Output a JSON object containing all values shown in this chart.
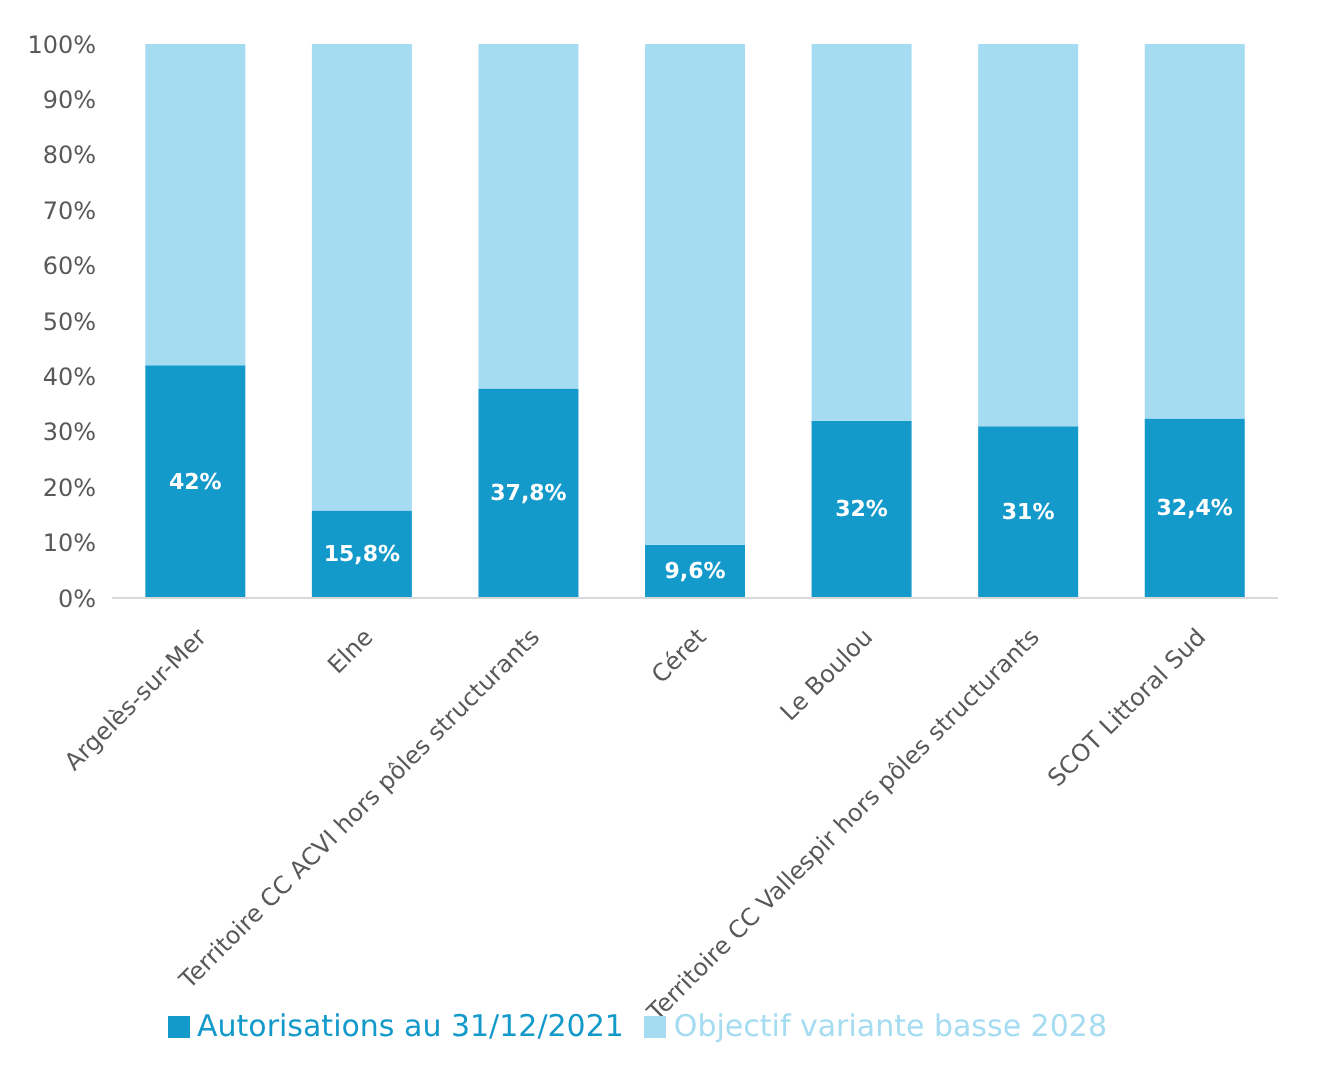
{
  "chart_data": {
    "type": "bar",
    "stacked": true,
    "categories": [
      "Argelès-sur-Mer",
      "Elne",
      "Territoire CC ACVI hors pôles structurants",
      "Céret",
      "Le Boulou",
      "Territoire CC Vallespir hors pôles structurants",
      "SCOT Littoral Sud"
    ],
    "series": [
      {
        "name": "Autorisations au 31/12/2021",
        "color": "#1499cb",
        "values": [
          42,
          15.8,
          37.8,
          9.6,
          32,
          31,
          32.4
        ],
        "value_labels": [
          "42%",
          "15,8%",
          "37,8%",
          "9,6%",
          "32%",
          "31%",
          "32,4%"
        ]
      },
      {
        "name": "Objectif variante basse 2028",
        "color": "#a5dcf2",
        "values": [
          58,
          84.2,
          62.2,
          90.4,
          68,
          69,
          67.6
        ]
      }
    ],
    "ylim": [
      0,
      100
    ],
    "yticks": [
      {
        "value": 0,
        "label": "0%"
      },
      {
        "value": 10,
        "label": "10%"
      },
      {
        "value": 20,
        "label": "20%"
      },
      {
        "value": 30,
        "label": "30%"
      },
      {
        "value": 40,
        "label": "40%"
      },
      {
        "value": 50,
        "label": "50%"
      },
      {
        "value": 60,
        "label": "60%"
      },
      {
        "value": 70,
        "label": "70%"
      },
      {
        "value": 80,
        "label": "80%"
      },
      {
        "value": 90,
        "label": "90%"
      },
      {
        "value": 100,
        "label": "100%"
      }
    ],
    "grid": false,
    "legend": "bottom"
  }
}
